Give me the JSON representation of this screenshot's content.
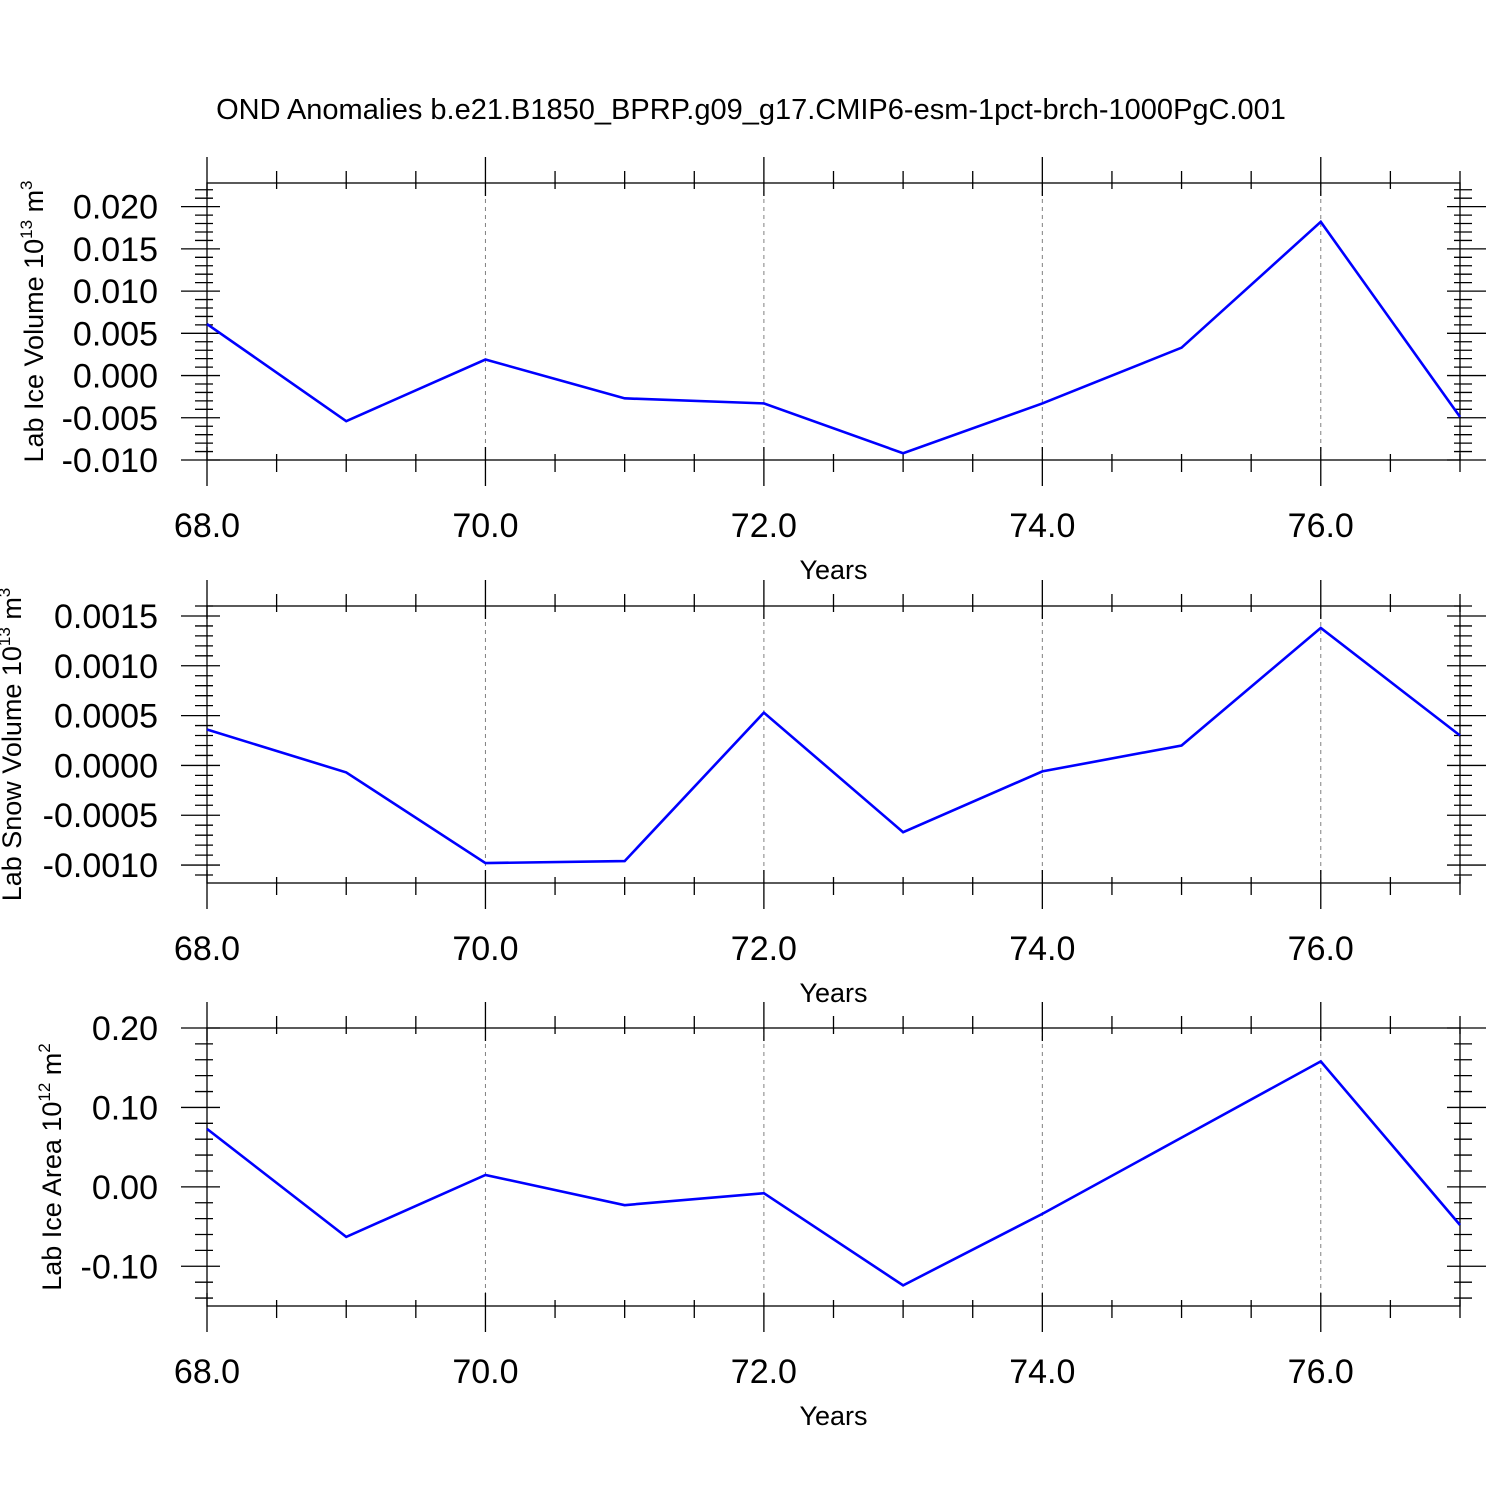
{
  "title": "OND Anomalies b.e21.B1850_BPRP.g09_g17.CMIP6-esm-1pct-brch-1000PgC.001",
  "line_color": "#0000ff",
  "chart_data": [
    {
      "type": "line",
      "xlabel": "Years",
      "ylabel_main": "Lab Ice Volume 10",
      "ylabel_exp": "13",
      "ylabel_unit": " m",
      "ylabel_unit_exp": "3",
      "xlim": [
        68,
        77
      ],
      "ylim": [
        -0.01,
        0.0228
      ],
      "xticks": [
        68,
        70,
        72,
        74,
        76
      ],
      "xtick_labels": [
        "68.0",
        "70.0",
        "72.0",
        "74.0",
        "76.0"
      ],
      "yticks": [
        -0.01,
        -0.005,
        0.0,
        0.005,
        0.01,
        0.015,
        0.02
      ],
      "ytick_labels": [
        "-0.010",
        "-0.005",
        "0.000",
        "0.005",
        "0.010",
        "0.015",
        "0.020"
      ],
      "yminor_step": 0.001,
      "grid": "vertical dashed at major x ticks",
      "x": [
        68,
        69,
        70,
        71,
        72,
        73,
        74,
        75,
        76,
        77
      ],
      "y": [
        0.0061,
        -0.0054,
        0.0019,
        -0.0027,
        -0.0033,
        -0.0092,
        -0.0033,
        0.0033,
        0.0182,
        -0.0049
      ]
    },
    {
      "type": "line",
      "xlabel": "Years",
      "ylabel_main": "Lab Snow Volume 10",
      "ylabel_exp": "13",
      "ylabel_unit": " m",
      "ylabel_unit_exp": "3",
      "xlim": [
        68,
        77
      ],
      "ylim": [
        -0.00118,
        0.0016
      ],
      "xticks": [
        68,
        70,
        72,
        74,
        76
      ],
      "xtick_labels": [
        "68.0",
        "70.0",
        "72.0",
        "74.0",
        "76.0"
      ],
      "yticks": [
        -0.001,
        -0.0005,
        0.0,
        0.0005,
        0.001,
        0.0015
      ],
      "ytick_labels": [
        "-0.0010",
        "-0.0005",
        "0.0000",
        "0.0005",
        "0.0010",
        "0.0015"
      ],
      "yminor_step": 0.0001,
      "grid": "vertical dashed at major x ticks",
      "x": [
        68,
        69,
        70,
        71,
        72,
        73,
        74,
        75,
        76,
        77
      ],
      "y": [
        0.00036,
        -7e-05,
        -0.00098,
        -0.00096,
        0.00053,
        -0.00067,
        -6e-05,
        0.0002,
        0.00138,
        0.0003
      ]
    },
    {
      "type": "line",
      "xlabel": "Years",
      "ylabel_main": "Lab Ice Area 10",
      "ylabel_exp": "12",
      "ylabel_unit": " m",
      "ylabel_unit_exp": "2",
      "xlim": [
        68,
        77
      ],
      "ylim": [
        -0.15,
        0.2
      ],
      "xticks": [
        68,
        70,
        72,
        74,
        76
      ],
      "xtick_labels": [
        "68.0",
        "70.0",
        "72.0",
        "74.0",
        "76.0"
      ],
      "yticks": [
        -0.1,
        0.0,
        0.1,
        0.2
      ],
      "ytick_labels": [
        "-0.10",
        "0.00",
        "0.10",
        "0.20"
      ],
      "yminor_step": 0.02,
      "grid": "vertical dashed at major x ticks",
      "x": [
        68,
        69,
        70,
        71,
        72,
        73,
        74,
        75,
        76,
        77
      ],
      "y": [
        0.073,
        -0.063,
        0.015,
        -0.023,
        -0.008,
        -0.124,
        -0.034,
        0.062,
        0.158,
        -0.048
      ]
    }
  ]
}
